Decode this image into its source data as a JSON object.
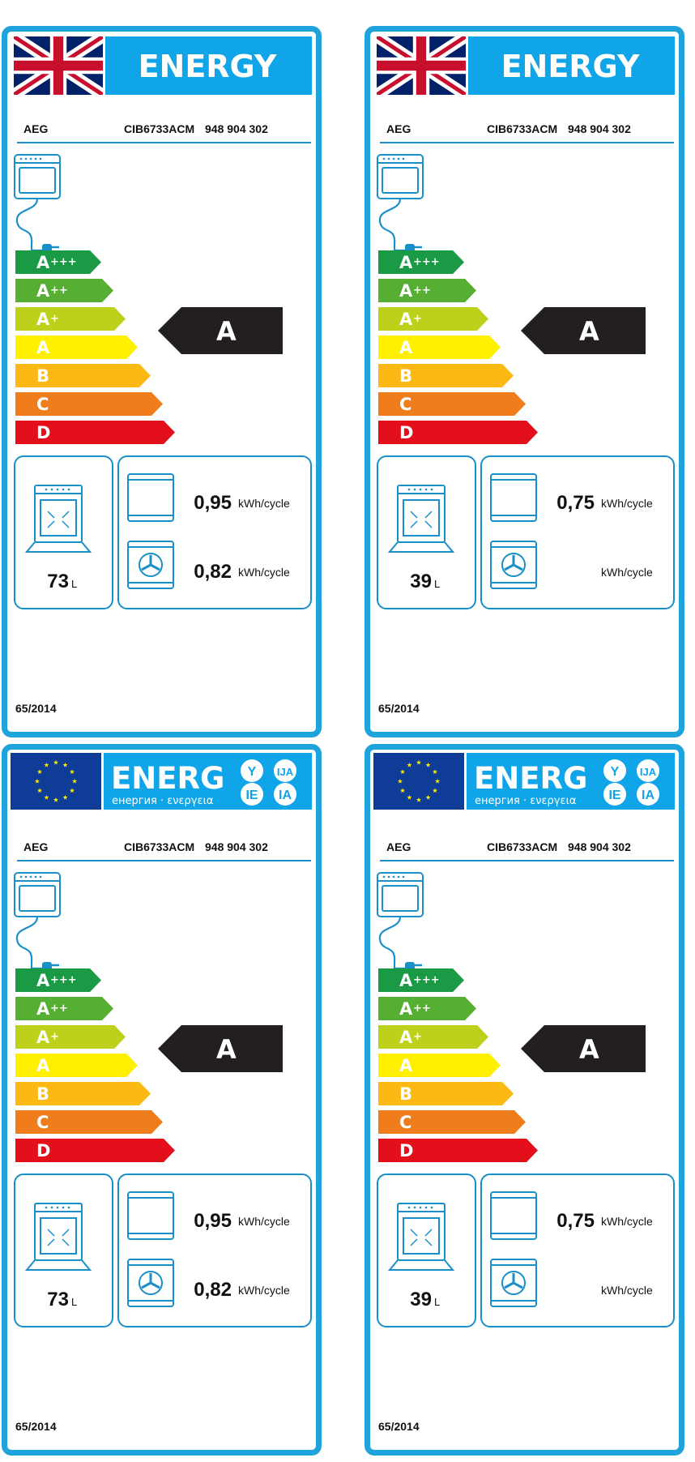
{
  "labels": [
    {
      "header_variant": "uk",
      "header_title": "ENERGY",
      "supplier": "AEG",
      "model": "CIB6733ACM",
      "product_number": "948 904 302",
      "rating": "A",
      "volume": "73",
      "volume_unit": "L",
      "conventional_value": "0,95",
      "conventional_unit": "kWh/cycle",
      "fan_value": "0,82",
      "fan_unit": "kWh/cycle",
      "regulation": "65/2014"
    },
    {
      "header_variant": "uk",
      "header_title": "ENERGY",
      "supplier": "AEG",
      "model": "CIB6733ACM",
      "product_number": "948 904 302",
      "rating": "A",
      "volume": "39",
      "volume_unit": "L",
      "conventional_value": "0,75",
      "conventional_unit": "kWh/cycle",
      "fan_value": "",
      "fan_unit": "kWh/cycle",
      "regulation": "65/2014"
    },
    {
      "header_variant": "eu",
      "header_title": "ENERG",
      "header_subtitle": "енергия · ενεργεια",
      "header_bubbles": [
        "Y",
        "IJA",
        "IE",
        "IA"
      ],
      "supplier": "AEG",
      "model": "CIB6733ACM",
      "product_number": "948 904 302",
      "rating": "A",
      "volume": "73",
      "volume_unit": "L",
      "conventional_value": "0,95",
      "conventional_unit": "kWh/cycle",
      "fan_value": "0,82",
      "fan_unit": "kWh/cycle",
      "regulation": "65/2014"
    },
    {
      "header_variant": "eu",
      "header_title": "ENERG",
      "header_subtitle": "енергия · ενεργεια",
      "header_bubbles": [
        "Y",
        "IJA",
        "IE",
        "IA"
      ],
      "supplier": "AEG",
      "model": "CIB6733ACM",
      "product_number": "948 904 302",
      "rating": "A",
      "volume": "39",
      "volume_unit": "L",
      "conventional_value": "0,75",
      "conventional_unit": "kWh/cycle",
      "fan_value": "",
      "fan_unit": "kWh/cycle",
      "regulation": "65/2014"
    }
  ],
  "efficiency_classes": [
    {
      "letter": "A",
      "sup": "+++",
      "color": "#1a9a45"
    },
    {
      "letter": "A",
      "sup": "++",
      "color": "#56ae32"
    },
    {
      "letter": "A",
      "sup": "+",
      "color": "#bdd01a"
    },
    {
      "letter": "A",
      "sup": "",
      "color": "#fff000"
    },
    {
      "letter": "B",
      "sup": "",
      "color": "#fcb913"
    },
    {
      "letter": "C",
      "sup": "",
      "color": "#ef7d1b"
    },
    {
      "letter": "D",
      "sup": "",
      "color": "#e30f1b"
    }
  ],
  "colors": {
    "frame_blue": "#1ea3dc",
    "header_blue": "#0fa5e8",
    "eu_flag_blue": "#0f3c96",
    "rating_black": "#231f20"
  }
}
